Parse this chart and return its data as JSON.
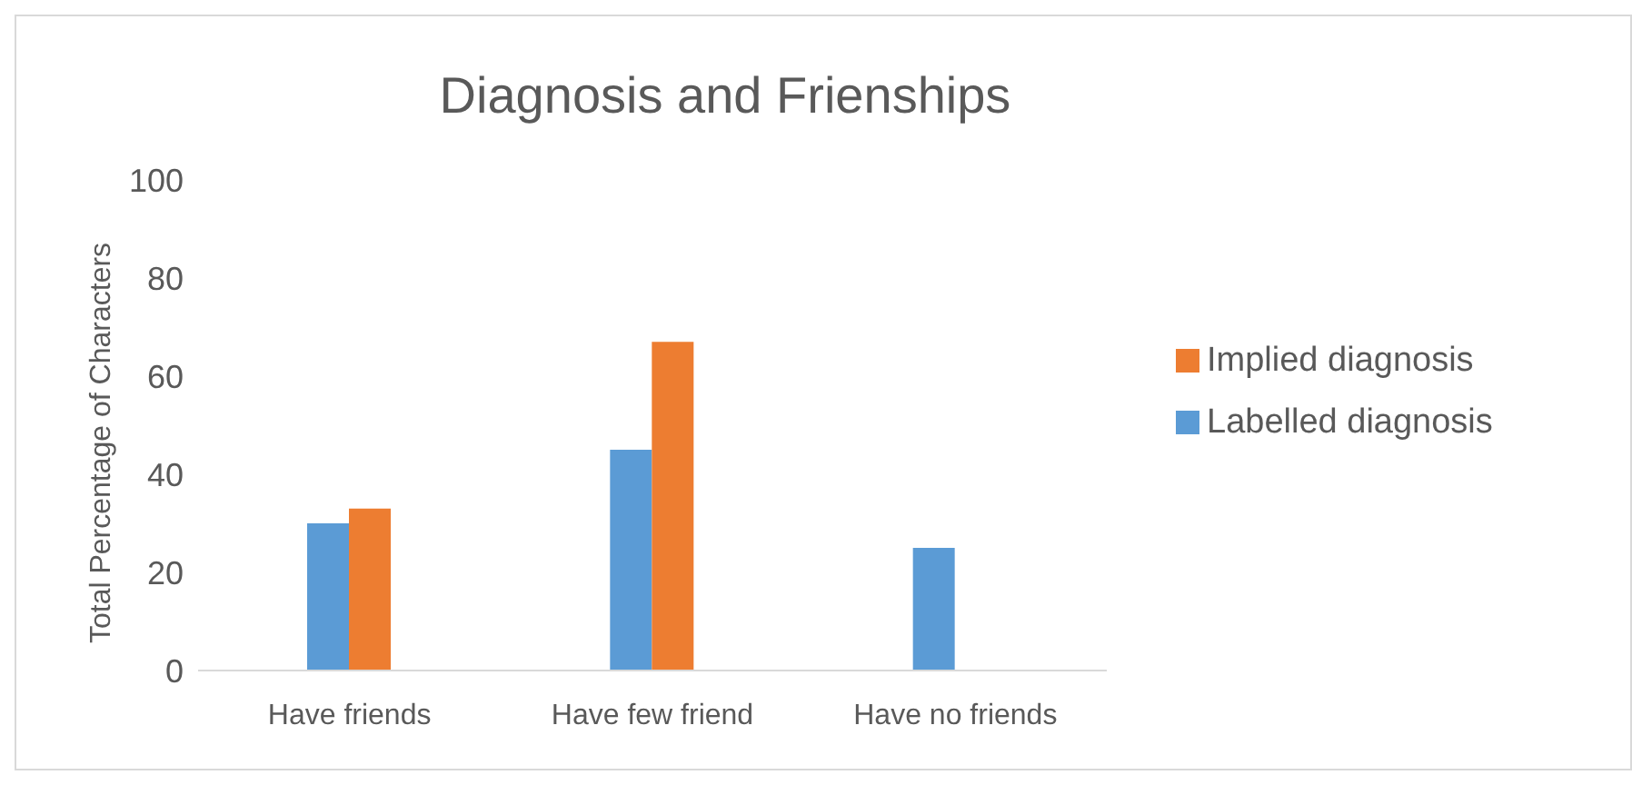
{
  "chart_data": {
    "type": "bar",
    "title": "Diagnosis and Frienships",
    "ylabel": "Total Percentage of Characters",
    "categories": [
      "Have friends",
      "Have few friend",
      "Have no friends"
    ],
    "series": [
      {
        "name": "Labelled diagnosis",
        "color": "#5b9bd5",
        "values": [
          30,
          45,
          25
        ]
      },
      {
        "name": "Implied diagnosis",
        "color": "#ed7d31",
        "values": [
          33,
          67,
          0
        ]
      }
    ],
    "ylim": [
      0,
      100
    ],
    "yticks": [
      0,
      20,
      40,
      60,
      80,
      100
    ],
    "grid": false,
    "legend": "right"
  }
}
